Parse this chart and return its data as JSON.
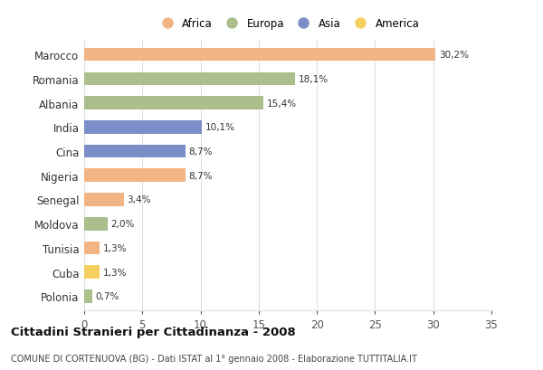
{
  "countries": [
    "Marocco",
    "Romania",
    "Albania",
    "India",
    "Cina",
    "Nigeria",
    "Senegal",
    "Moldova",
    "Tunisia",
    "Cuba",
    "Polonia"
  ],
  "values": [
    30.2,
    18.1,
    15.4,
    10.1,
    8.7,
    8.7,
    3.4,
    2.0,
    1.3,
    1.3,
    0.7
  ],
  "labels": [
    "30,2%",
    "18,1%",
    "15,4%",
    "10,1%",
    "8,7%",
    "8,7%",
    "3,4%",
    "2,0%",
    "1,3%",
    "1,3%",
    "0,7%"
  ],
  "colors": [
    "#F2B482",
    "#ABBE8C",
    "#ABBE8C",
    "#7B8EC8",
    "#7B8EC8",
    "#F2B482",
    "#F2B482",
    "#ABBE8C",
    "#F2B482",
    "#F5D060",
    "#ABBE8C"
  ],
  "legend_labels": [
    "Africa",
    "Europa",
    "Asia",
    "America"
  ],
  "legend_colors": [
    "#F2B482",
    "#ABBE8C",
    "#7B8EC8",
    "#F5D060"
  ],
  "title": "Cittadini Stranieri per Cittadinanza - 2008",
  "subtitle": "COMUNE DI CORTENUOVA (BG) - Dati ISTAT al 1° gennaio 2008 - Elaborazione TUTTITALIA.IT",
  "xlim": [
    0,
    35
  ],
  "xticks": [
    0,
    5,
    10,
    15,
    20,
    25,
    30,
    35
  ],
  "background_color": "#ffffff",
  "grid_color": "#e0e0e0",
  "bar_height": 0.55
}
